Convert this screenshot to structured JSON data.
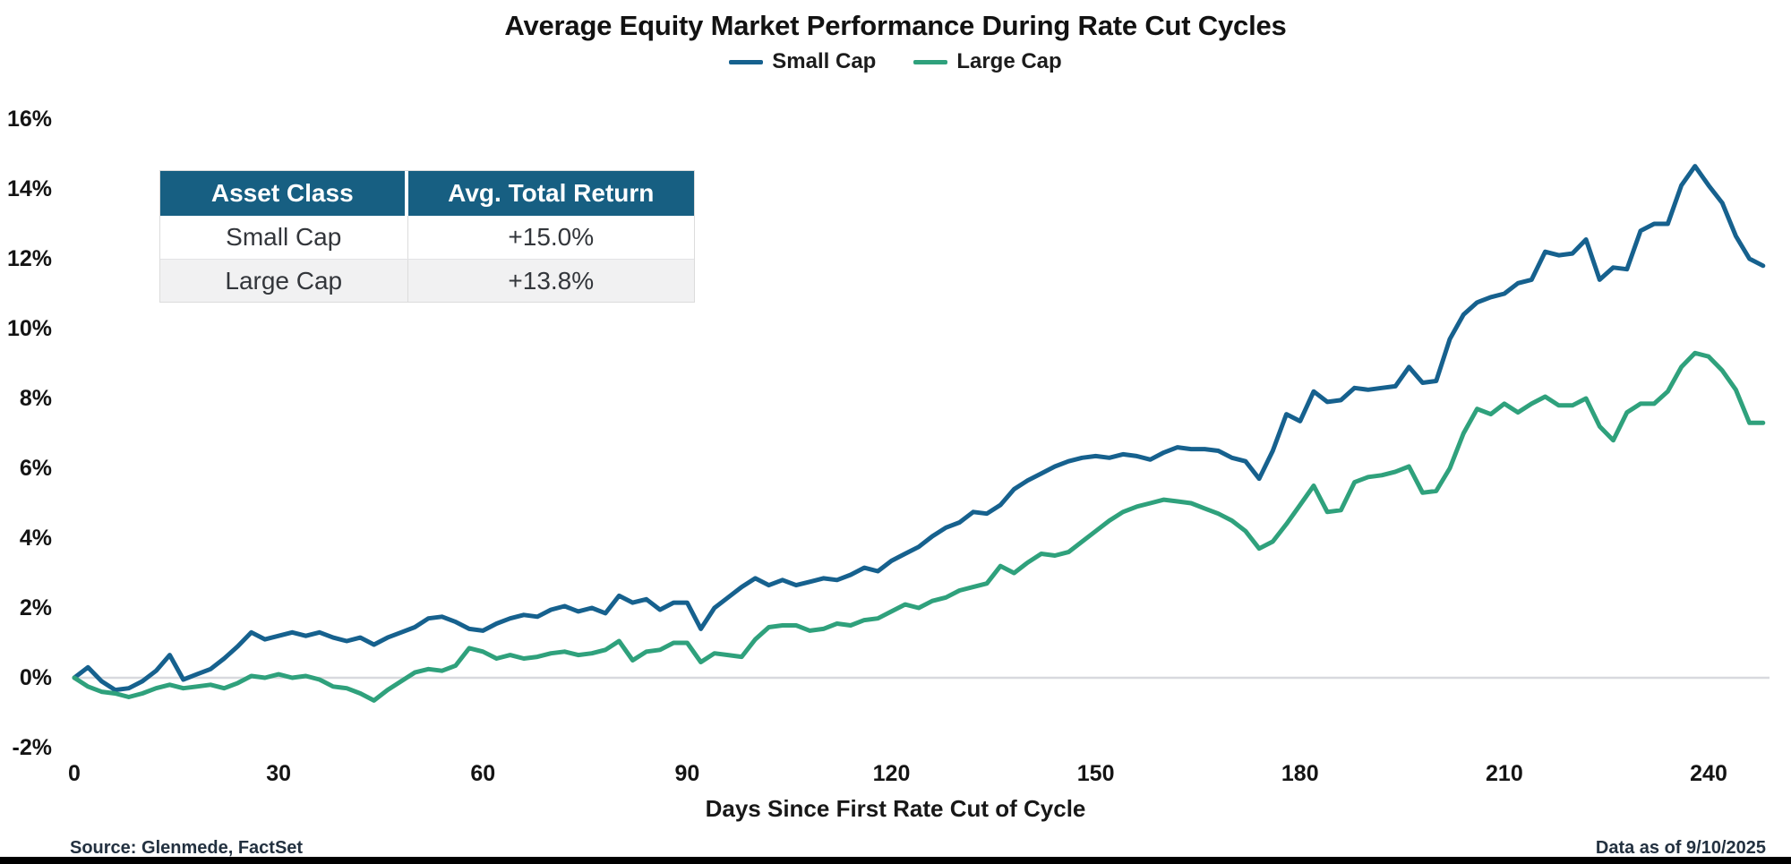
{
  "legend": [
    {
      "label": "Small Cap"
    },
    {
      "label": "Large Cap"
    }
  ],
  "table": {
    "headers": [
      "Asset Class",
      "Avg. Total Return"
    ],
    "rows": [
      {
        "asset": "Small Cap",
        "return": "+15.0%"
      },
      {
        "asset": "Large Cap",
        "return": "+13.8%"
      }
    ]
  },
  "footer": {
    "source": "Source: Glenmede, FactSet",
    "data_as_of": "Data as of 9/10/2025"
  },
  "colors": {
    "small_cap": "#16618E",
    "large_cap": "#2FA17C",
    "table_header_bg": "#175F82",
    "zero_line": "#D8D9DE",
    "bottom_bar": "#000000"
  },
  "chart_data": {
    "type": "line",
    "title": "Average Equity Market Performance During Rate Cut Cycles",
    "xlabel": "Days Since First Rate Cut of Cycle",
    "ylabel": "",
    "xlim": [
      0,
      248
    ],
    "ylim": [
      -2.7,
      16.8
    ],
    "grid": false,
    "legend_position": "top",
    "xticks": [
      0,
      30,
      60,
      90,
      120,
      150,
      180,
      210,
      240
    ],
    "xtick_labels": [
      "0",
      "30",
      "60",
      "90",
      "120",
      "150",
      "180",
      "210",
      "240"
    ],
    "yticks": [
      16,
      14,
      12,
      10,
      8,
      6,
      4,
      2,
      0,
      -2
    ],
    "ytick_labels": [
      "16%",
      "14%",
      "12%",
      "10%",
      "8%",
      "6%",
      "4%",
      "2%",
      "0%",
      "-2%"
    ],
    "x": [
      0,
      2,
      4,
      6,
      8,
      10,
      12,
      14,
      16,
      18,
      20,
      22,
      24,
      26,
      28,
      30,
      32,
      34,
      36,
      38,
      40,
      42,
      44,
      46,
      48,
      50,
      52,
      54,
      56,
      58,
      60,
      62,
      64,
      66,
      68,
      70,
      72,
      74,
      76,
      78,
      80,
      82,
      84,
      86,
      88,
      90,
      92,
      94,
      96,
      98,
      100,
      102,
      104,
      106,
      108,
      110,
      112,
      114,
      116,
      118,
      120,
      122,
      124,
      126,
      128,
      130,
      132,
      134,
      136,
      138,
      140,
      142,
      144,
      146,
      148,
      150,
      152,
      154,
      156,
      158,
      160,
      162,
      164,
      166,
      168,
      170,
      172,
      174,
      176,
      178,
      180,
      182,
      184,
      186,
      188,
      190,
      192,
      194,
      196,
      198,
      200,
      202,
      204,
      206,
      208,
      210,
      212,
      214,
      216,
      218,
      220,
      222,
      224,
      226,
      228,
      230,
      232,
      234,
      236,
      238,
      240,
      242,
      244,
      246,
      248
    ],
    "series": [
      {
        "name": "Small Cap",
        "color": "#16618E",
        "avg_total_return": "+15.0%",
        "values": [
          0,
          0.3,
          -0.1,
          -0.35,
          -0.3,
          -0.1,
          0.2,
          0.65,
          -0.05,
          0.1,
          0.25,
          0.55,
          0.9,
          1.3,
          1.1,
          1.2,
          1.3,
          1.2,
          1.3,
          1.15,
          1.05,
          1.15,
          0.95,
          1.15,
          1.3,
          1.45,
          1.7,
          1.75,
          1.6,
          1.4,
          1.35,
          1.55,
          1.7,
          1.8,
          1.75,
          1.95,
          2.05,
          1.9,
          2.0,
          1.85,
          2.35,
          2.15,
          2.25,
          1.95,
          2.15,
          2.15,
          1.4,
          2.0,
          2.3,
          2.6,
          2.85,
          2.65,
          2.8,
          2.65,
          2.75,
          2.85,
          2.8,
          2.95,
          3.15,
          3.05,
          3.35,
          3.55,
          3.75,
          4.05,
          4.3,
          4.45,
          4.75,
          4.7,
          4.95,
          5.4,
          5.65,
          5.85,
          6.05,
          6.2,
          6.3,
          6.35,
          6.3,
          6.4,
          6.35,
          6.25,
          6.45,
          6.6,
          6.55,
          6.55,
          6.5,
          6.3,
          6.2,
          5.7,
          6.5,
          7.55,
          7.35,
          8.2,
          7.9,
          7.95,
          8.3,
          8.25,
          8.3,
          8.35,
          8.9,
          8.45,
          8.5,
          9.7,
          10.4,
          10.75,
          10.9,
          11.0,
          11.3,
          11.4,
          12.2,
          12.1,
          12.15,
          12.55,
          11.4,
          11.75,
          11.7,
          12.8,
          13.0,
          13.0,
          14.1,
          14.65,
          14.1,
          13.6,
          12.65,
          12.0,
          11.8
        ]
      },
      {
        "name": "Large Cap",
        "color": "#2FA17C",
        "avg_total_return": "+13.8%",
        "values": [
          0,
          -0.25,
          -0.4,
          -0.45,
          -0.55,
          -0.45,
          -0.3,
          -0.2,
          -0.3,
          -0.25,
          -0.2,
          -0.3,
          -0.15,
          0.05,
          0,
          0.1,
          0,
          0.05,
          -0.05,
          -0.25,
          -0.3,
          -0.45,
          -0.65,
          -0.35,
          -0.1,
          0.15,
          0.25,
          0.2,
          0.35,
          0.85,
          0.75,
          0.55,
          0.65,
          0.55,
          0.6,
          0.7,
          0.75,
          0.65,
          0.7,
          0.8,
          1.05,
          0.5,
          0.75,
          0.8,
          1.0,
          1.0,
          0.45,
          0.7,
          0.65,
          0.6,
          1.1,
          1.45,
          1.5,
          1.5,
          1.35,
          1.4,
          1.55,
          1.5,
          1.65,
          1.7,
          1.9,
          2.1,
          2.0,
          2.2,
          2.3,
          2.5,
          2.6,
          2.7,
          3.2,
          3.0,
          3.3,
          3.55,
          3.5,
          3.6,
          3.9,
          4.2,
          4.5,
          4.75,
          4.9,
          5.0,
          5.1,
          5.05,
          5.0,
          4.85,
          4.7,
          4.5,
          4.2,
          3.7,
          3.9,
          4.4,
          4.95,
          5.5,
          4.75,
          4.8,
          5.6,
          5.75,
          5.8,
          5.9,
          6.05,
          5.3,
          5.35,
          6.0,
          7.0,
          7.7,
          7.55,
          7.85,
          7.6,
          7.85,
          8.05,
          7.8,
          7.8,
          8.0,
          7.2,
          6.8,
          7.6,
          7.85,
          7.85,
          8.2,
          8.9,
          9.3,
          9.2,
          8.8,
          8.25,
          7.3,
          7.3
        ]
      }
    ]
  }
}
